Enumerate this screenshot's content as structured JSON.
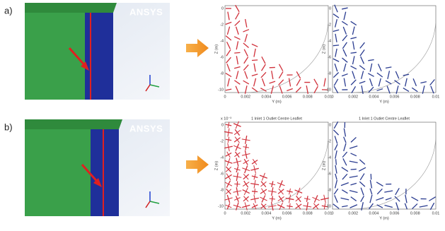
{
  "panels": [
    {
      "label": "a)",
      "logo": "ANSYS"
    },
    {
      "label": "b)",
      "logo": "ANSYS",
      "plot_title": "1 Inlet 1 Outlet Centre Leaflet",
      "exponent": "x 10⁻³"
    }
  ],
  "axes": {
    "xticks": [
      "0",
      "0.002",
      "0.004",
      "0.006",
      "0.008",
      "0.01"
    ],
    "yticks": [
      "0",
      "-2",
      "-4",
      "-6",
      "-8",
      "-10"
    ],
    "xlabel": "Y (m)",
    "ylabel": "Z (m)"
  }
}
